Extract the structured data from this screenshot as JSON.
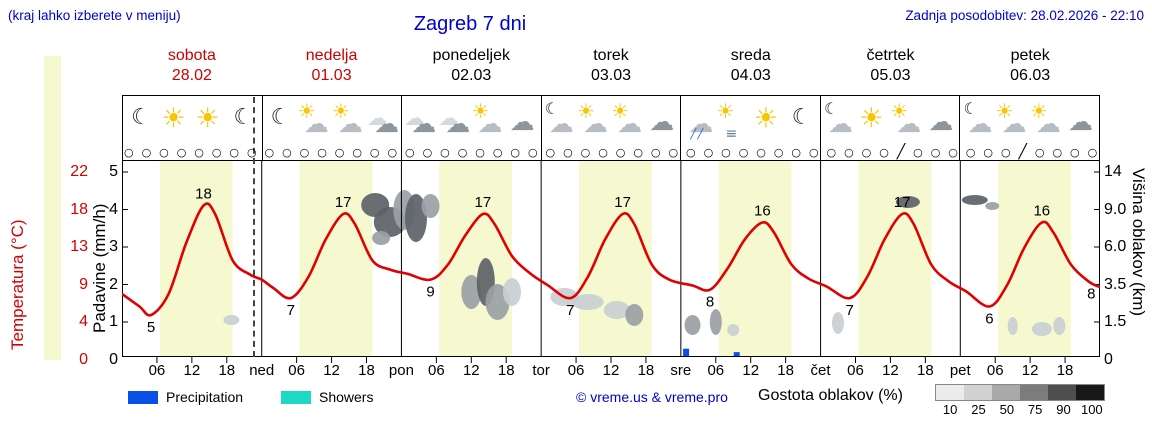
{
  "header": {
    "hint": "(kraj lahko izberete v meniju)",
    "title": "Zagreb 7 dni",
    "updated": "Zadnja posodobitev: 28.02.2026 - 22:10"
  },
  "days": [
    {
      "name": "sobota",
      "date": "28.02",
      "name_color": "#cc0000",
      "icons": [
        "moon",
        "sun",
        "sun",
        "moon"
      ]
    },
    {
      "name": "nedelja",
      "date": "01.03",
      "name_color": "#cc0000",
      "icons": [
        "moon",
        "suncloud",
        "suncloud",
        "clouds"
      ]
    },
    {
      "name": "ponedeljek",
      "date": "02.03",
      "name_color": "#000000",
      "icons": [
        "clouds",
        "clouds",
        "suncloud",
        "cloudgray"
      ]
    },
    {
      "name": "torek",
      "date": "03.03",
      "name_color": "#000000",
      "icons": [
        "mooncloud",
        "suncloud",
        "suncloud",
        "cloudgray"
      ]
    },
    {
      "name": "sreda",
      "date": "04.03",
      "name_color": "#000000",
      "icons": [
        "showercloud",
        "fogsun",
        "sun",
        "moon"
      ]
    },
    {
      "name": "četrtek",
      "date": "05.03",
      "name_color": "#000000",
      "icons": [
        "mooncloud",
        "sun",
        "suncloud",
        "cloudgray"
      ]
    },
    {
      "name": "petek",
      "date": "06.03",
      "name_color": "#000000",
      "icons": [
        "mooncloud",
        "suncloud",
        "suncloud",
        "cloudgray"
      ]
    }
  ],
  "axes": {
    "temp_label": "Temperatura (°C)",
    "precip_label": "Padavine (mm/h)",
    "cloud_label": "Višina oblakov (km)",
    "temp_ticks": [
      "22",
      "18",
      "13",
      "9",
      "4",
      "0"
    ],
    "precip_ticks": [
      "5",
      "4",
      "3",
      "2",
      "1",
      "0"
    ],
    "cloud_ticks": [
      "14",
      "9.0",
      "6.0",
      "3.5",
      "1.5",
      "0"
    ],
    "temp_color": "#d40000"
  },
  "x_axis": {
    "hour_labels": [
      "06",
      "12",
      "18"
    ],
    "day_abbrevs": [
      "ned",
      "pon",
      "tor",
      "sre",
      "čet",
      "pet"
    ]
  },
  "status_row": {
    "symbol": "○",
    "count": 56,
    "slash_indices": [
      44,
      51
    ]
  },
  "legend": {
    "precipitation_label": "Precipitation",
    "precipitation_color": "#0a50e6",
    "showers_label": "Showers",
    "showers_color": "#1fd9c8",
    "credit": "© vreme.us & vreme.pro",
    "cloud_density_label": "Gostota oblakov (%)",
    "scale_labels": [
      "10",
      "25",
      "50",
      "75",
      "90",
      "100"
    ],
    "scale_colors": [
      "#ececec",
      "#d2d2d2",
      "#a9a9a9",
      "#7c7c7c",
      "#4e4e4e",
      "#181818"
    ]
  },
  "chart_data": {
    "type": "line",
    "title": "Zagreb 7 dni",
    "x_unit": "hours from 28.02 00:00",
    "x_range": [
      0,
      168
    ],
    "temp_axis": {
      "label": "Temperatura (°C)",
      "range": [
        0,
        22
      ]
    },
    "precip_axis": {
      "label": "Padavine (mm/h)",
      "range": [
        0,
        5.25
      ]
    },
    "cloud_axis": {
      "label": "Višina oblakov (km)",
      "ticks": [
        0,
        1.5,
        3.5,
        6.0,
        9.0,
        14
      ]
    },
    "daily_highs": [
      18,
      17,
      17,
      17,
      16,
      17,
      16
    ],
    "daily_lows": [
      5,
      7,
      9,
      7,
      8,
      7,
      6
    ],
    "end_value": 8,
    "temperature_series": {
      "name": "Temperatura",
      "color": "#e00000",
      "points": [
        [
          0,
          7.5
        ],
        [
          3,
          6
        ],
        [
          5,
          5
        ],
        [
          8,
          7.5
        ],
        [
          11,
          13.5
        ],
        [
          14,
          18
        ],
        [
          16,
          17
        ],
        [
          19,
          11.5
        ],
        [
          22,
          9.8
        ],
        [
          24,
          9.2
        ],
        [
          26,
          8.2
        ],
        [
          29,
          7
        ],
        [
          32,
          9.5
        ],
        [
          35,
          14
        ],
        [
          38,
          17
        ],
        [
          40,
          15.8
        ],
        [
          43,
          11.5
        ],
        [
          46,
          10.4
        ],
        [
          49,
          9.9
        ],
        [
          53,
          9.2
        ],
        [
          56,
          11
        ],
        [
          59,
          14.5
        ],
        [
          62,
          17
        ],
        [
          64,
          15.8
        ],
        [
          67,
          12
        ],
        [
          70,
          10
        ],
        [
          73,
          8.6
        ],
        [
          77,
          7
        ],
        [
          80,
          9.5
        ],
        [
          83,
          14
        ],
        [
          86,
          17
        ],
        [
          88,
          15.8
        ],
        [
          91,
          11
        ],
        [
          94,
          9.2
        ],
        [
          98,
          8.5
        ],
        [
          101,
          8
        ],
        [
          104,
          10.5
        ],
        [
          107,
          14
        ],
        [
          110,
          16
        ],
        [
          112,
          14.8
        ],
        [
          115,
          11
        ],
        [
          118,
          9.3
        ],
        [
          121,
          8.4
        ],
        [
          125,
          7
        ],
        [
          128,
          9.5
        ],
        [
          131,
          14
        ],
        [
          134,
          17
        ],
        [
          136,
          15.8
        ],
        [
          139,
          11
        ],
        [
          142,
          9
        ],
        [
          145,
          7.8
        ],
        [
          149,
          6
        ],
        [
          152,
          8.5
        ],
        [
          155,
          13
        ],
        [
          158,
          16
        ],
        [
          160,
          14.8
        ],
        [
          163,
          11
        ],
        [
          166,
          9
        ],
        [
          168,
          8.3
        ]
      ]
    },
    "extreme_labels": [
      {
        "text": "5",
        "hour": 5,
        "temp": 5,
        "side": "below"
      },
      {
        "text": "18",
        "hour": 14,
        "temp": 18,
        "side": "above"
      },
      {
        "text": "7",
        "hour": 29,
        "temp": 7,
        "side": "below"
      },
      {
        "text": "17",
        "hour": 38,
        "temp": 17,
        "side": "above"
      },
      {
        "text": "9",
        "hour": 53,
        "temp": 9.2,
        "side": "below"
      },
      {
        "text": "17",
        "hour": 62,
        "temp": 17,
        "side": "above"
      },
      {
        "text": "7",
        "hour": 77,
        "temp": 7,
        "side": "below"
      },
      {
        "text": "17",
        "hour": 86,
        "temp": 17,
        "side": "above"
      },
      {
        "text": "8",
        "hour": 101,
        "temp": 8,
        "side": "below"
      },
      {
        "text": "16",
        "hour": 110,
        "temp": 16,
        "side": "above"
      },
      {
        "text": "7",
        "hour": 125,
        "temp": 7,
        "side": "below"
      },
      {
        "text": "17",
        "hour": 134,
        "temp": 17,
        "side": "above"
      },
      {
        "text": "6",
        "hour": 149,
        "temp": 6,
        "side": "below"
      },
      {
        "text": "16",
        "hour": 158,
        "temp": 16,
        "side": "above"
      },
      {
        "text": "8",
        "hour": 166.5,
        "temp": 9,
        "side": "below"
      }
    ],
    "day_band": {
      "start_hour": 6.5,
      "end_hour": 19,
      "color": "#f6f9cf"
    },
    "now_line_hour": 22.5,
    "precip_bars": [
      {
        "hour": 96.9,
        "value": 0.22,
        "color": "#0a50e6"
      },
      {
        "hour": 105.6,
        "value": 0.13,
        "color": "#0a50e6"
      }
    ],
    "cloud_tones": {
      "light": "#c9ced2",
      "mid": "#9aa0a5",
      "dark": "#5d6268"
    },
    "cloud_blobs": [
      [
        18.8,
        160,
        8,
        5,
        "light"
      ],
      [
        43.5,
        45,
        14,
        12,
        "dark"
      ],
      [
        46,
        62,
        16,
        15,
        "dark"
      ],
      [
        48.5,
        50,
        11,
        20,
        "mid"
      ],
      [
        50.5,
        58,
        11,
        24,
        "dark"
      ],
      [
        53,
        46,
        9,
        12,
        "mid"
      ],
      [
        44.5,
        78,
        9,
        7,
        "mid"
      ],
      [
        60,
        132,
        10,
        17,
        "mid"
      ],
      [
        62.5,
        122,
        9,
        24,
        "dark"
      ],
      [
        64.5,
        142,
        12,
        18,
        "mid"
      ],
      [
        67,
        132,
        9,
        14,
        "light"
      ],
      [
        76,
        137,
        14,
        9,
        "light"
      ],
      [
        80,
        142,
        16,
        8,
        "light"
      ],
      [
        85,
        150,
        13,
        9,
        "light"
      ],
      [
        88,
        155,
        9,
        11,
        "mid"
      ],
      [
        98,
        165,
        8,
        10,
        "mid"
      ],
      [
        102,
        162,
        6,
        13,
        "mid"
      ],
      [
        105,
        170,
        6,
        6,
        "light"
      ],
      [
        123,
        163,
        6,
        11,
        "light"
      ],
      [
        135,
        42,
        12,
        6,
        "dark"
      ],
      [
        146.5,
        40,
        13,
        5,
        "dark"
      ],
      [
        149.5,
        46,
        7,
        4,
        "mid"
      ],
      [
        153,
        166,
        5,
        9,
        "light"
      ],
      [
        158,
        169,
        10,
        7,
        "light"
      ],
      [
        161,
        166,
        6,
        9,
        "light"
      ]
    ]
  }
}
